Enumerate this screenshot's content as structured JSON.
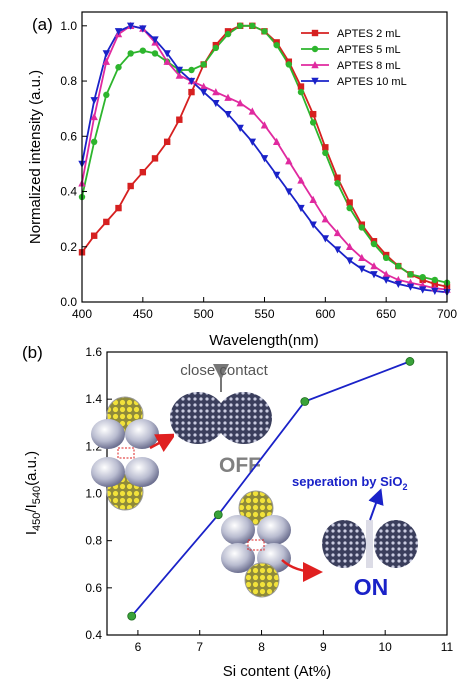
{
  "chart_data": [
    {
      "panel": "(a)",
      "type": "line",
      "xlabel": "Wavelength(nm)",
      "ylabel": "Normalized intensity (a.u.)",
      "xlim": [
        400,
        700
      ],
      "ylim": [
        0.0,
        1.05
      ],
      "xticks": [
        "400",
        "450",
        "500",
        "550",
        "600",
        "650",
        "700"
      ],
      "yticks": [
        "0.0",
        "0.2",
        "0.4",
        "0.6",
        "0.8",
        "1.0"
      ],
      "legend_position": "top-right",
      "series": [
        {
          "name": "APTES 2 mL",
          "color": "#d62020",
          "marker": "square",
          "points": [
            [
              400,
              0.18
            ],
            [
              410,
              0.24
            ],
            [
              420,
              0.29
            ],
            [
              430,
              0.34
            ],
            [
              440,
              0.42
            ],
            [
              450,
              0.47
            ],
            [
              460,
              0.52
            ],
            [
              470,
              0.58
            ],
            [
              480,
              0.66
            ],
            [
              490,
              0.76
            ],
            [
              500,
              0.86
            ],
            [
              510,
              0.93
            ],
            [
              520,
              0.98
            ],
            [
              530,
              1.0
            ],
            [
              540,
              1.0
            ],
            [
              550,
              0.98
            ],
            [
              560,
              0.94
            ],
            [
              570,
              0.87
            ],
            [
              580,
              0.78
            ],
            [
              590,
              0.68
            ],
            [
              600,
              0.56
            ],
            [
              610,
              0.45
            ],
            [
              620,
              0.36
            ],
            [
              630,
              0.28
            ],
            [
              640,
              0.22
            ],
            [
              650,
              0.17
            ],
            [
              660,
              0.13
            ],
            [
              670,
              0.1
            ],
            [
              680,
              0.08
            ],
            [
              690,
              0.065
            ],
            [
              700,
              0.055
            ]
          ]
        },
        {
          "name": "APTES 5 mL",
          "color": "#2db52d",
          "marker": "circle",
          "points": [
            [
              400,
              0.38
            ],
            [
              410,
              0.58
            ],
            [
              420,
              0.75
            ],
            [
              430,
              0.85
            ],
            [
              440,
              0.9
            ],
            [
              450,
              0.91
            ],
            [
              460,
              0.9
            ],
            [
              470,
              0.87
            ],
            [
              480,
              0.84
            ],
            [
              490,
              0.84
            ],
            [
              500,
              0.86
            ],
            [
              510,
              0.92
            ],
            [
              520,
              0.97
            ],
            [
              530,
              1.0
            ],
            [
              540,
              1.0
            ],
            [
              550,
              0.98
            ],
            [
              560,
              0.93
            ],
            [
              570,
              0.86
            ],
            [
              580,
              0.76
            ],
            [
              590,
              0.65
            ],
            [
              600,
              0.54
            ],
            [
              610,
              0.43
            ],
            [
              620,
              0.34
            ],
            [
              630,
              0.27
            ],
            [
              640,
              0.21
            ],
            [
              650,
              0.16
            ],
            [
              660,
              0.13
            ],
            [
              670,
              0.1
            ],
            [
              680,
              0.09
            ],
            [
              690,
              0.08
            ],
            [
              700,
              0.07
            ]
          ]
        },
        {
          "name": "APTES 8 mL",
          "color": "#e02a9f",
          "marker": "triangle-up",
          "points": [
            [
              400,
              0.43
            ],
            [
              410,
              0.67
            ],
            [
              420,
              0.87
            ],
            [
              430,
              0.97
            ],
            [
              440,
              1.0
            ],
            [
              450,
              0.99
            ],
            [
              460,
              0.94
            ],
            [
              470,
              0.87
            ],
            [
              480,
              0.82
            ],
            [
              490,
              0.8
            ],
            [
              500,
              0.78
            ],
            [
              510,
              0.76
            ],
            [
              520,
              0.74
            ],
            [
              530,
              0.72
            ],
            [
              540,
              0.69
            ],
            [
              550,
              0.64
            ],
            [
              560,
              0.58
            ],
            [
              570,
              0.51
            ],
            [
              580,
              0.44
            ],
            [
              590,
              0.37
            ],
            [
              600,
              0.3
            ],
            [
              610,
              0.25
            ],
            [
              620,
              0.2
            ],
            [
              630,
              0.16
            ],
            [
              640,
              0.13
            ],
            [
              650,
              0.1
            ],
            [
              660,
              0.08
            ],
            [
              670,
              0.07
            ],
            [
              680,
              0.06
            ],
            [
              690,
              0.05
            ],
            [
              700,
              0.045
            ]
          ]
        },
        {
          "name": "APTES 10 mL",
          "color": "#1a22c8",
          "marker": "triangle-down",
          "points": [
            [
              400,
              0.5
            ],
            [
              410,
              0.73
            ],
            [
              420,
              0.9
            ],
            [
              430,
              0.98
            ],
            [
              440,
              1.0
            ],
            [
              450,
              0.99
            ],
            [
              460,
              0.95
            ],
            [
              470,
              0.9
            ],
            [
              480,
              0.84
            ],
            [
              490,
              0.8
            ],
            [
              500,
              0.76
            ],
            [
              510,
              0.72
            ],
            [
              520,
              0.68
            ],
            [
              530,
              0.63
            ],
            [
              540,
              0.58
            ],
            [
              550,
              0.52
            ],
            [
              560,
              0.46
            ],
            [
              570,
              0.4
            ],
            [
              580,
              0.34
            ],
            [
              590,
              0.28
            ],
            [
              600,
              0.23
            ],
            [
              610,
              0.19
            ],
            [
              620,
              0.15
            ],
            [
              630,
              0.12
            ],
            [
              640,
              0.1
            ],
            [
              650,
              0.08
            ],
            [
              660,
              0.065
            ],
            [
              670,
              0.055
            ],
            [
              680,
              0.045
            ],
            [
              690,
              0.04
            ],
            [
              700,
              0.035
            ]
          ]
        }
      ]
    },
    {
      "panel": "(b)",
      "type": "line",
      "xlabel": "Si content (At%)",
      "ylabel_main": "I",
      "ylabel_sub1": "450",
      "ylabel_mid": "/I",
      "ylabel_sub2": "540",
      "ylabel_tail": "(a.u.)",
      "xlim": [
        5.5,
        11
      ],
      "ylim": [
        0.4,
        1.6
      ],
      "xticks": [
        "6",
        "7",
        "8",
        "9",
        "10",
        "11"
      ],
      "yticks": [
        "0.4",
        "0.6",
        "0.8",
        "1.0",
        "1.2",
        "1.4",
        "1.6"
      ],
      "line_color": "#1a22c8",
      "marker_color": "#3aa23a",
      "x": [
        5.9,
        7.3,
        8.7,
        10.4
      ],
      "y": [
        0.48,
        0.91,
        1.39,
        1.56
      ]
    }
  ],
  "annotations": {
    "close_contact": "close contact",
    "off": "OFF",
    "separation": "seperation by SiO",
    "separation_sub": "2",
    "on": "ON"
  }
}
